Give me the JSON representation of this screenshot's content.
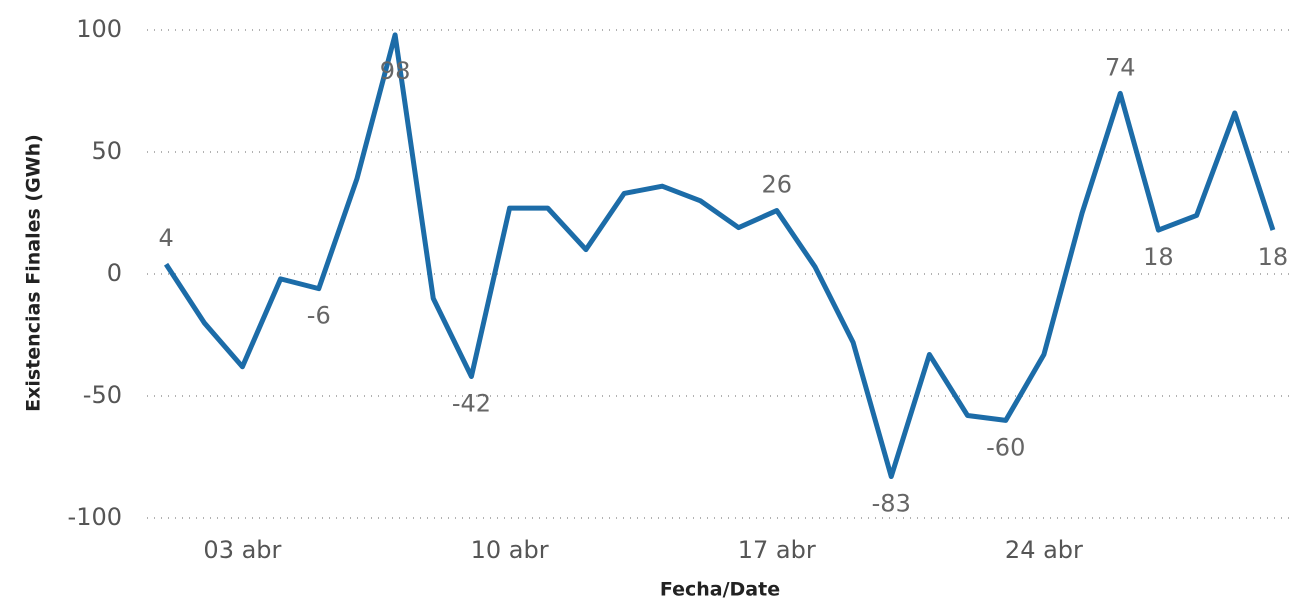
{
  "chart_data": {
    "type": "line",
    "x_label": "Fecha/Date",
    "y_label": "Existencias Finales (GWh)",
    "categories": [
      null,
      null,
      "03 abr",
      null,
      null,
      null,
      null,
      null,
      null,
      "10 abr",
      null,
      null,
      null,
      null,
      null,
      null,
      "17 abr",
      null,
      null,
      null,
      null,
      null,
      null,
      "24 abr",
      null,
      null,
      null,
      null,
      null,
      null
    ],
    "series": [
      {
        "name": "Existencias Finales",
        "color": "#1c6ca8",
        "values": [
          4,
          -20,
          -38,
          -2,
          -6,
          39,
          98,
          -10,
          -42,
          27,
          27,
          10,
          33,
          36,
          30,
          19,
          26,
          3,
          -28,
          -83,
          -33,
          -58,
          -60,
          -33,
          25,
          74,
          18,
          24,
          66,
          18
        ],
        "value_labels": [
          "4",
          null,
          null,
          null,
          "-6",
          null,
          "98",
          null,
          "-42",
          null,
          null,
          null,
          null,
          null,
          null,
          null,
          "26",
          null,
          null,
          "-83",
          null,
          null,
          "-60",
          null,
          null,
          "74",
          "18",
          null,
          null,
          "18"
        ]
      }
    ],
    "ylim": [
      -100,
      100
    ],
    "yticks": [
      -100,
      -50,
      0,
      50,
      100
    ],
    "grid": true
  }
}
